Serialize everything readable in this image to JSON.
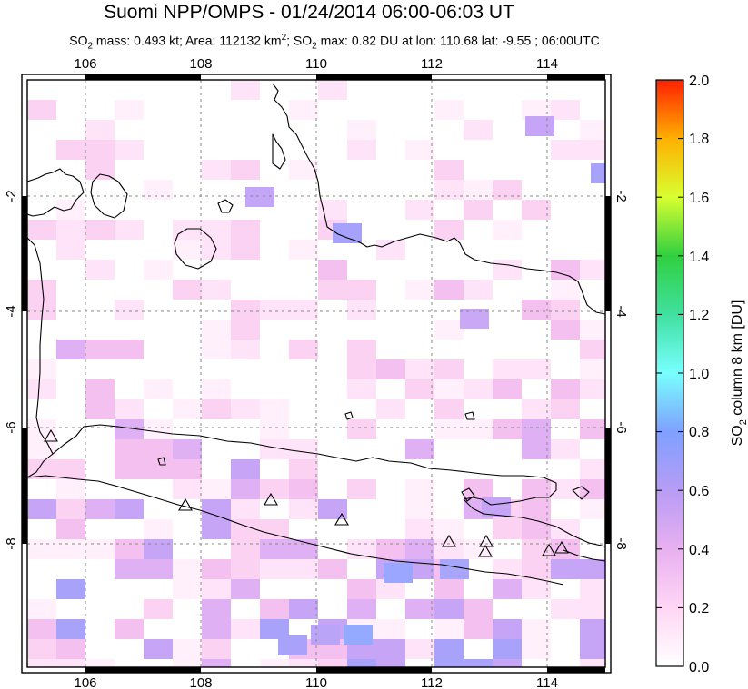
{
  "header": {
    "title": "Suomi NPP/OMPS - 01/24/2014 06:00-06:03 UT",
    "subtitle_pre": "SO",
    "subtitle_sub": "2",
    "subtitle_mid1": " mass: 0.493 kt; Area: 112132 km",
    "subtitle_sup": "2",
    "subtitle_mid2": "; SO",
    "subtitle_sub2": "2",
    "subtitle_post": " max: 0.82 DU at lon: 110.68 lat: -9.55 ; 06:00UTC"
  },
  "map": {
    "lon_ticks": [
      "106",
      "108",
      "110",
      "112",
      "114"
    ],
    "lat_ticks": [
      "-2",
      "-4",
      "-6",
      "-8"
    ]
  },
  "colorbar": {
    "label_pre": "SO",
    "label_sub": "2",
    "label_post": " column 8 km [DU]",
    "ticks": [
      "2.0",
      "1.8",
      "1.6",
      "1.4",
      "1.2",
      "1.0",
      "0.8",
      "0.6",
      "0.4",
      "0.2",
      "0.0"
    ]
  },
  "colors": {
    "low": "#ffe6ff",
    "mid": "#c8a0ff",
    "high": "#8aa8ff",
    "coast": "#000000"
  }
}
